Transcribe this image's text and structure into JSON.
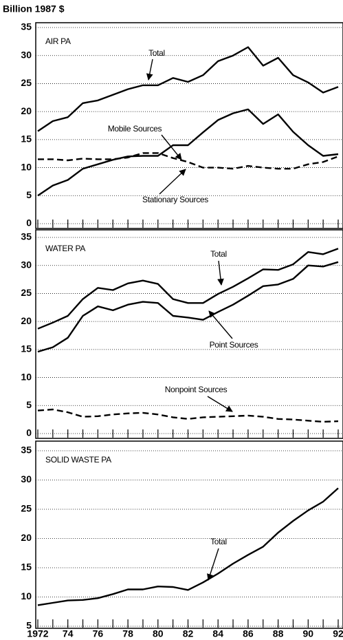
{
  "chart_data": [
    {
      "type": "line",
      "ylabel": "Billion 1987 $",
      "title": "AIR PA",
      "x": [
        1972,
        1973,
        1974,
        1975,
        1976,
        1977,
        1978,
        1979,
        1980,
        1981,
        1982,
        1983,
        1984,
        1985,
        1986,
        1987,
        1988,
        1989,
        1990,
        1991,
        1992
      ],
      "ylim": [
        0,
        35
      ],
      "yticks": [
        0,
        5,
        10,
        15,
        20,
        25,
        30,
        35
      ],
      "grid": true,
      "series": [
        {
          "name": "Total",
          "color": "#000000",
          "style": "solid",
          "values": [
            16.5,
            18.3,
            19,
            21.5,
            22,
            23,
            24,
            24.7,
            24.7,
            26,
            25.3,
            26.5,
            29,
            30,
            31.5,
            28.2,
            29.6,
            26.5,
            25.2,
            23.4,
            24.4
          ]
        },
        {
          "name": "Mobile Sources",
          "color": "#000000",
          "style": "solid",
          "values": [
            5,
            6.8,
            7.8,
            9.8,
            10.6,
            11.4,
            12,
            12.1,
            12.1,
            14,
            14,
            16.3,
            18.5,
            19.7,
            20.4,
            17.8,
            19.5,
            16.4,
            14,
            12.1,
            12.4
          ]
        },
        {
          "name": "Stationary Sources",
          "color": "#000000",
          "style": "dashed",
          "values": [
            11.5,
            11.5,
            11.3,
            11.6,
            11.5,
            11.5,
            11.8,
            12.6,
            12.6,
            11.7,
            11,
            10,
            10,
            9.8,
            10.3,
            10,
            9.8,
            9.8,
            10.6,
            11,
            12
          ]
        }
      ]
    },
    {
      "type": "line",
      "title": "WATER PA",
      "x": [
        1972,
        1973,
        1974,
        1975,
        1976,
        1977,
        1978,
        1979,
        1980,
        1981,
        1982,
        1983,
        1984,
        1985,
        1986,
        1987,
        1988,
        1989,
        1990,
        1991,
        1992
      ],
      "ylim": [
        0,
        35
      ],
      "yticks": [
        0,
        5,
        10,
        15,
        20,
        25,
        30,
        35
      ],
      "grid": true,
      "series": [
        {
          "name": "Total",
          "color": "#000000",
          "style": "solid",
          "values": [
            18.7,
            19.8,
            21,
            24,
            26,
            25.6,
            26.8,
            27.3,
            26.7,
            24,
            23.3,
            23.3,
            24.9,
            26.2,
            27.7,
            29.3,
            29.2,
            30.2,
            32.4,
            32,
            33
          ]
        },
        {
          "name": "Point Sources",
          "color": "#000000",
          "style": "solid",
          "values": [
            14.6,
            15.4,
            17.1,
            21,
            22.7,
            22,
            23,
            23.5,
            23.3,
            21,
            20.7,
            20.3,
            21.7,
            23,
            24.6,
            26.3,
            26.6,
            27.6,
            30,
            29.8,
            30.6
          ]
        },
        {
          "name": "Nonpoint Sources",
          "color": "#000000",
          "style": "dashed",
          "values": [
            4.1,
            4.3,
            3.8,
            3,
            3.1,
            3.4,
            3.6,
            3.7,
            3.4,
            2.9,
            2.6,
            2.9,
            3,
            3.1,
            3.2,
            3,
            2.6,
            2.5,
            2.3,
            2.1,
            2.2
          ]
        }
      ]
    },
    {
      "type": "line",
      "title": "SOLID WASTE PA",
      "x": [
        1972,
        1973,
        1974,
        1975,
        1976,
        1977,
        1978,
        1979,
        1980,
        1981,
        1982,
        1983,
        1984,
        1985,
        1986,
        1987,
        1988,
        1989,
        1990,
        1991,
        1992
      ],
      "xlim": [
        1972,
        1992
      ],
      "xticks": [
        1972,
        {
          "value": 1974,
          "label": "74"
        },
        {
          "value": 1976,
          "label": "76"
        },
        {
          "value": 1978,
          "label": "78"
        },
        {
          "value": 1980,
          "label": "80"
        },
        {
          "value": 1982,
          "label": "82"
        },
        {
          "value": 1984,
          "label": "84"
        },
        {
          "value": 1986,
          "label": "86"
        },
        {
          "value": 1988,
          "label": "88"
        },
        {
          "value": 1990,
          "label": "90"
        },
        {
          "value": 1992,
          "label": "92"
        }
      ],
      "ylim": [
        5,
        35
      ],
      "yticks": [
        5,
        10,
        15,
        20,
        25,
        30,
        35
      ],
      "grid": true,
      "series": [
        {
          "name": "Total",
          "color": "#000000",
          "style": "solid",
          "values": [
            8.6,
            9,
            9.4,
            9.5,
            9.8,
            10.5,
            11.3,
            11.3,
            11.8,
            11.7,
            11.2,
            12.5,
            14,
            15.7,
            17.2,
            18.6,
            21,
            23,
            24.8,
            26.3,
            28.6
          ]
        }
      ]
    }
  ]
}
